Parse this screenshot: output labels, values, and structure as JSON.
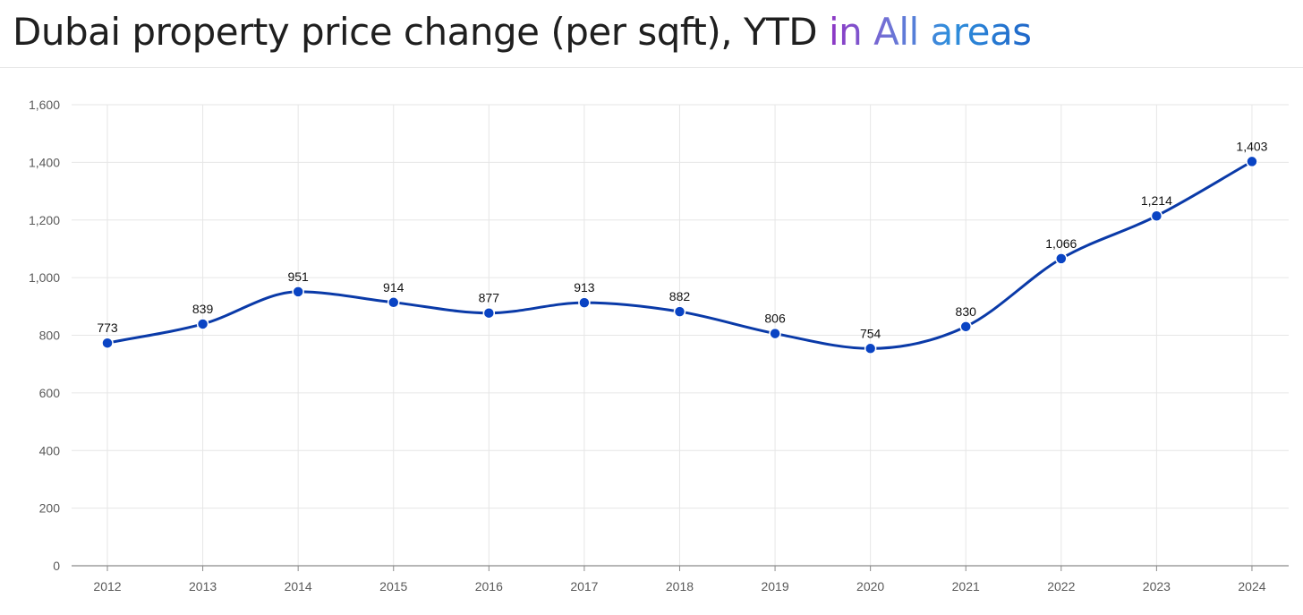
{
  "header": {
    "title_main": "Dubai property price change (per sqft), YTD ",
    "title_highlight": "in All areas"
  },
  "colors": {
    "line": "#0a3aa8",
    "marker": "#0a44c4",
    "grid": "#e6e6e6",
    "axis": "#8a8a8a"
  },
  "chart_data": {
    "type": "line",
    "title": "Dubai property price change (per sqft), YTD in All areas",
    "xlabel": "",
    "ylabel": "",
    "categories": [
      "2012",
      "2013",
      "2014",
      "2015",
      "2016",
      "2017",
      "2018",
      "2019",
      "2020",
      "2021",
      "2022",
      "2023",
      "2024"
    ],
    "values": [
      773,
      839,
      951,
      914,
      877,
      913,
      882,
      806,
      754,
      830,
      1066,
      1214,
      1403
    ],
    "data_labels": [
      "773",
      "839",
      "951",
      "914",
      "877",
      "913",
      "882",
      "806",
      "754",
      "830",
      "1,066",
      "1,214",
      "1,403"
    ],
    "ylim": [
      0,
      1600
    ],
    "yticks": [
      0,
      200,
      400,
      600,
      800,
      1000,
      1200,
      1400,
      1600
    ],
    "ytick_labels": [
      "0",
      "200",
      "400",
      "600",
      "800",
      "1,000",
      "1,200",
      "1,400",
      "1,600"
    ],
    "grid": true,
    "legend": "none",
    "smooth": true,
    "markers": true
  }
}
